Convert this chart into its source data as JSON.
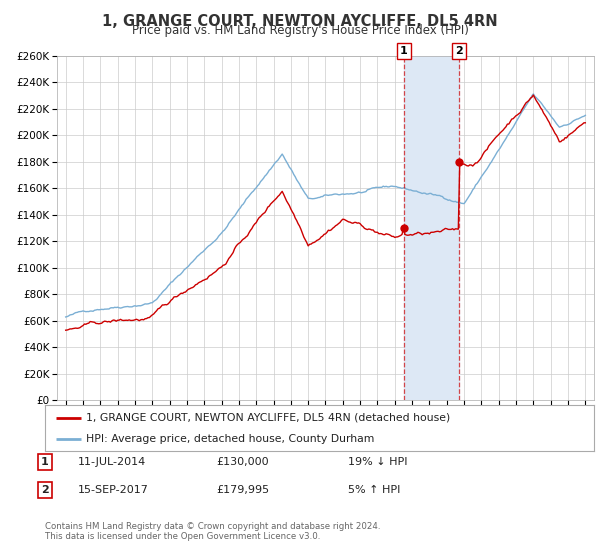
{
  "title": "1, GRANGE COURT, NEWTON AYCLIFFE, DL5 4RN",
  "subtitle": "Price paid vs. HM Land Registry's House Price Index (HPI)",
  "legend_line1": "1, GRANGE COURT, NEWTON AYCLIFFE, DL5 4RN (detached house)",
  "legend_line2": "HPI: Average price, detached house, County Durham",
  "transaction1_label": "1",
  "transaction1_date": "11-JUL-2014",
  "transaction1_price": "£130,000",
  "transaction1_change": "19% ↓ HPI",
  "transaction1_year": 2014.53,
  "transaction1_value": 130000,
  "transaction2_label": "2",
  "transaction2_date": "15-SEP-2017",
  "transaction2_price": "£179,995",
  "transaction2_change": "5% ↑ HPI",
  "transaction2_year": 2017.71,
  "transaction2_value": 179995,
  "footer": "Contains HM Land Registry data © Crown copyright and database right 2024.\nThis data is licensed under the Open Government Licence v3.0.",
  "red_color": "#cc0000",
  "blue_color": "#7bafd4",
  "bg_color": "#ffffff",
  "grid_color": "#cccccc",
  "highlight_color": "#dde8f5",
  "ylim": [
    0,
    260000
  ],
  "yticks": [
    0,
    20000,
    40000,
    60000,
    80000,
    100000,
    120000,
    140000,
    160000,
    180000,
    200000,
    220000,
    240000,
    260000
  ],
  "xlim": [
    1994.5,
    2025.5
  ]
}
